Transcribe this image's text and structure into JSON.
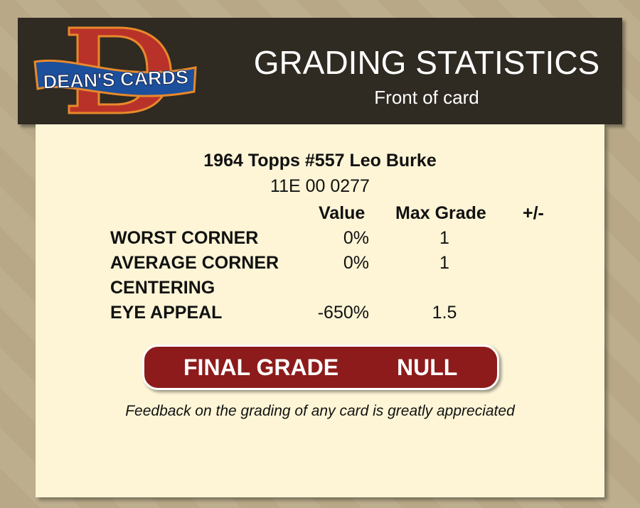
{
  "header": {
    "logo_text": "DEAN'S CARDS",
    "title": "GRADING STATISTICS",
    "subtitle": "Front of card"
  },
  "card": {
    "name": "1964 Topps #557  Leo Burke",
    "cert": "11E 00 0277"
  },
  "table": {
    "columns": {
      "value": "Value",
      "max_grade": "Max Grade",
      "plus_minus": "+/-"
    },
    "rows": [
      {
        "label": "WORST CORNER",
        "value": "0%",
        "max_grade": "1",
        "plus_minus": ""
      },
      {
        "label": "AVERAGE CORNER",
        "value": "0%",
        "max_grade": "1",
        "plus_minus": ""
      },
      {
        "label": "CENTERING",
        "value": "",
        "max_grade": "",
        "plus_minus": ""
      },
      {
        "label": "EYE APPEAL",
        "value": "-650%",
        "max_grade": "1.5",
        "plus_minus": ""
      }
    ]
  },
  "final": {
    "label": "FINAL GRADE",
    "value": "NULL"
  },
  "feedback": "Feedback on the grading of any card is greatly appreciated",
  "colors": {
    "header_bg": "#2f2a22",
    "panel_bg": "#fdf5d6",
    "final_bg": "#8d1b1b"
  }
}
